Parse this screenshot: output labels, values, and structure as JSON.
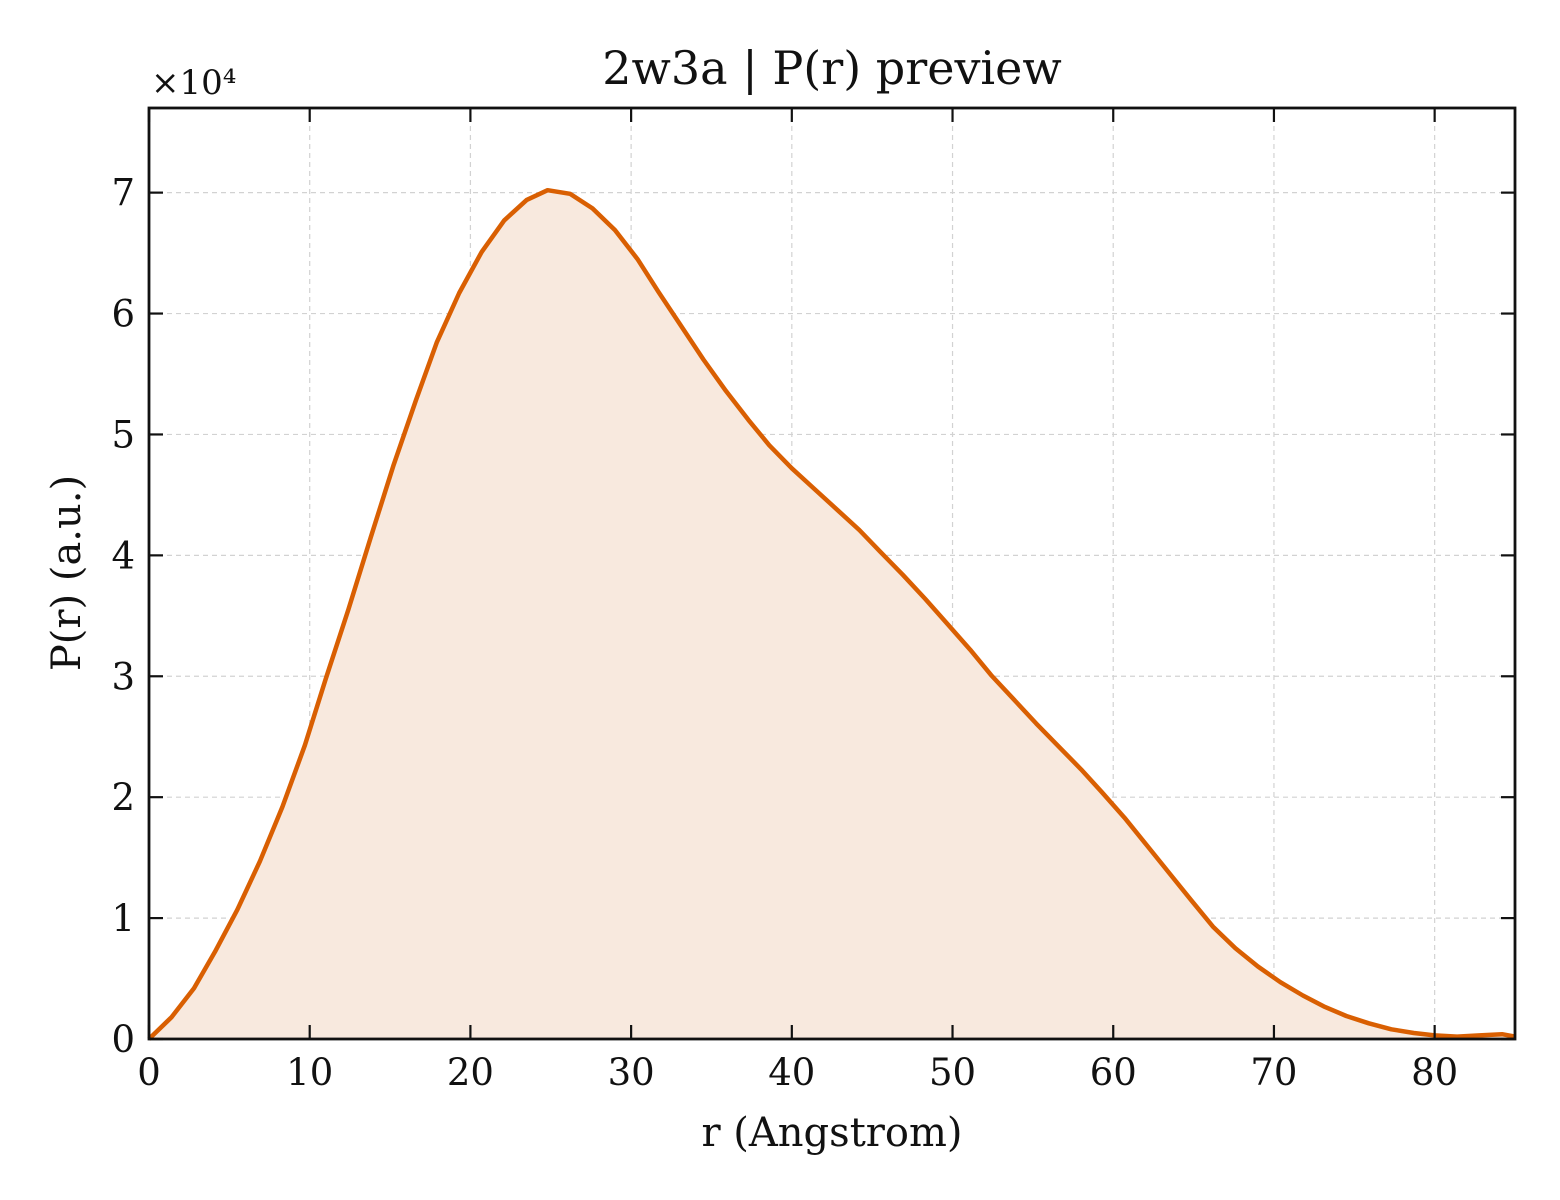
{
  "chart_data": {
    "type": "area",
    "title": "2w3a | P(r) preview",
    "xlabel": "r (Angstrom)",
    "ylabel": "P(r) (a.u.)",
    "y_offset_label": "×10⁴",
    "xlim": [
      0,
      85
    ],
    "ylim": [
      0,
      7.7
    ],
    "x_ticks": [
      0,
      10,
      20,
      30,
      40,
      50,
      60,
      70,
      80
    ],
    "y_ticks": [
      0,
      1,
      2,
      3,
      4,
      5,
      6,
      7
    ],
    "grid": true,
    "line_color": "#d95f02",
    "fill_color": "#f8e9de",
    "series": [
      {
        "x": [
          0,
          1.4,
          2.8,
          4.1,
          5.5,
          6.9,
          8.3,
          9.7,
          11.0,
          12.4,
          13.8,
          15.2,
          16.6,
          17.9,
          19.3,
          20.7,
          22.1,
          23.5,
          24.8,
          26.2,
          27.6,
          29.0,
          30.4,
          31.7,
          33.1,
          34.5,
          35.9,
          37.3,
          38.6,
          40.0,
          41.4,
          42.8,
          44.2,
          45.5,
          46.9,
          48.3,
          49.7,
          51.1,
          52.4,
          53.8,
          55.2,
          56.6,
          58.0,
          59.3,
          60.7,
          62.1,
          63.5,
          64.9,
          66.2,
          67.6,
          69.0,
          70.4,
          71.8,
          73.1,
          74.5,
          75.9,
          77.3,
          78.7,
          80.0,
          81.4,
          82.8,
          84.2,
          85.0
        ],
        "y": [
          0.0,
          0.18,
          0.42,
          0.72,
          1.07,
          1.47,
          1.92,
          2.43,
          2.98,
          3.55,
          4.15,
          4.74,
          5.28,
          5.76,
          6.17,
          6.51,
          6.77,
          6.94,
          7.02,
          6.99,
          6.87,
          6.69,
          6.45,
          6.18,
          5.9,
          5.62,
          5.36,
          5.12,
          4.91,
          4.72,
          4.55,
          4.38,
          4.21,
          4.03,
          3.84,
          3.64,
          3.43,
          3.22,
          3.01,
          2.81,
          2.61,
          2.42,
          2.23,
          2.04,
          1.83,
          1.6,
          1.37,
          1.14,
          0.93,
          0.75,
          0.6,
          0.47,
          0.36,
          0.27,
          0.19,
          0.13,
          0.08,
          0.05,
          0.03,
          0.02,
          0.03,
          0.04,
          0.02
        ]
      }
    ]
  }
}
